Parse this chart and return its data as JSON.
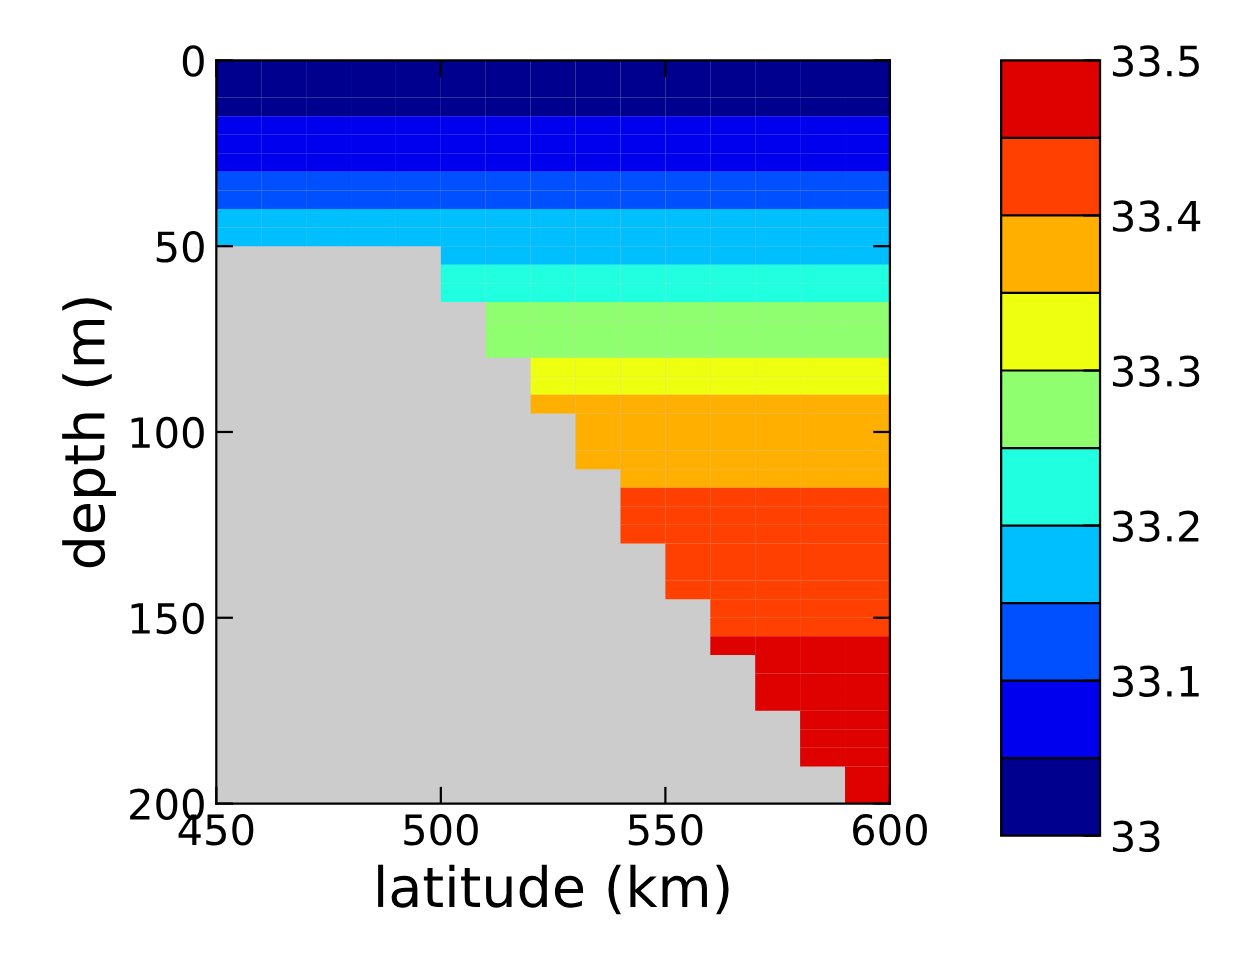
{
  "chart_data": {
    "type": "heatmap",
    "xlabel": "latitude (km)",
    "ylabel": "depth (m)",
    "xlim": [
      450,
      600
    ],
    "xticks": [
      450,
      500,
      550,
      600
    ],
    "ylim": [
      200,
      0
    ],
    "yticks": [
      0,
      50,
      100,
      150,
      200
    ],
    "clim": [
      33,
      33.5
    ],
    "cticks": [
      33,
      33.1,
      33.2,
      33.3,
      33.4,
      33.5
    ],
    "colors": [
      "#00008f",
      "#0000ef",
      "#0050ff",
      "#00bfff",
      "#20ffdf",
      "#8fff70",
      "#efff10",
      "#ffaf00",
      "#ff4000",
      "#df0000"
    ],
    "grid": false,
    "cells": [
      [
        33.025,
        33.025,
        33.025,
        33.025,
        33.025,
        33.025,
        33.025,
        33.025,
        33.025,
        33.025,
        33.025,
        33.025,
        33.025,
        33.025,
        33.025
      ],
      [
        33.025,
        33.025,
        33.025,
        33.025,
        33.025,
        33.025,
        33.025,
        33.025,
        33.025,
        33.025,
        33.025,
        33.025,
        33.025,
        33.025,
        33.025
      ],
      [
        33.025,
        33.025,
        33.025,
        33.025,
        33.025,
        33.025,
        33.025,
        33.025,
        33.025,
        33.025,
        33.025,
        33.025,
        33.025,
        33.025,
        33.025
      ],
      [
        33.075,
        33.075,
        33.075,
        33.075,
        33.075,
        33.075,
        33.075,
        33.075,
        33.075,
        33.075,
        33.075,
        33.075,
        33.075,
        33.075,
        33.075
      ],
      [
        33.075,
        33.075,
        33.075,
        33.075,
        33.075,
        33.075,
        33.075,
        33.075,
        33.075,
        33.075,
        33.075,
        33.075,
        33.075,
        33.075,
        33.075
      ],
      [
        33.075,
        33.075,
        33.075,
        33.075,
        33.075,
        33.075,
        33.075,
        33.075,
        33.075,
        33.075,
        33.075,
        33.075,
        33.075,
        33.075,
        33.075
      ],
      [
        33.125,
        33.125,
        33.125,
        33.125,
        33.125,
        33.125,
        33.125,
        33.125,
        33.125,
        33.125,
        33.125,
        33.125,
        33.125,
        33.125,
        33.125
      ],
      [
        33.125,
        33.125,
        33.125,
        33.125,
        33.125,
        33.125,
        33.125,
        33.125,
        33.125,
        33.125,
        33.125,
        33.125,
        33.125,
        33.125,
        33.125
      ],
      [
        33.175,
        33.175,
        33.175,
        33.175,
        33.175,
        33.175,
        33.175,
        33.175,
        33.175,
        33.175,
        33.175,
        33.175,
        33.175,
        33.175,
        33.175
      ],
      [
        33.175,
        33.175,
        33.175,
        33.175,
        33.175,
        33.175,
        33.175,
        33.175,
        33.175,
        33.175,
        33.175,
        33.175,
        33.175,
        33.175,
        33.175
      ],
      [
        null,
        null,
        null,
        null,
        null,
        33.175,
        33.175,
        33.175,
        33.175,
        33.175,
        33.175,
        33.175,
        33.175,
        33.175,
        33.175
      ],
      [
        null,
        null,
        null,
        null,
        null,
        33.225,
        33.225,
        33.225,
        33.225,
        33.225,
        33.225,
        33.225,
        33.225,
        33.225,
        33.225
      ],
      [
        null,
        null,
        null,
        null,
        null,
        33.225,
        33.225,
        33.225,
        33.225,
        33.225,
        33.225,
        33.225,
        33.225,
        33.225,
        33.225
      ],
      [
        null,
        null,
        null,
        null,
        null,
        null,
        33.275,
        33.275,
        33.275,
        33.275,
        33.275,
        33.275,
        33.275,
        33.275,
        33.275
      ],
      [
        null,
        null,
        null,
        null,
        null,
        null,
        33.275,
        33.275,
        33.275,
        33.275,
        33.275,
        33.275,
        33.275,
        33.275,
        33.275
      ],
      [
        null,
        null,
        null,
        null,
        null,
        null,
        33.275,
        33.275,
        33.275,
        33.275,
        33.275,
        33.275,
        33.275,
        33.275,
        33.275
      ],
      [
        null,
        null,
        null,
        null,
        null,
        null,
        null,
        33.325,
        33.325,
        33.325,
        33.325,
        33.325,
        33.325,
        33.325,
        33.325
      ],
      [
        null,
        null,
        null,
        null,
        null,
        null,
        null,
        33.325,
        33.325,
        33.325,
        33.325,
        33.325,
        33.325,
        33.325,
        33.325
      ],
      [
        null,
        null,
        null,
        null,
        null,
        null,
        null,
        33.375,
        33.375,
        33.375,
        33.375,
        33.375,
        33.375,
        33.375,
        33.375
      ],
      [
        null,
        null,
        null,
        null,
        null,
        null,
        null,
        null,
        33.375,
        33.375,
        33.375,
        33.375,
        33.375,
        33.375,
        33.375
      ],
      [
        null,
        null,
        null,
        null,
        null,
        null,
        null,
        null,
        33.375,
        33.375,
        33.375,
        33.375,
        33.375,
        33.375,
        33.375
      ],
      [
        null,
        null,
        null,
        null,
        null,
        null,
        null,
        null,
        33.375,
        33.375,
        33.375,
        33.375,
        33.375,
        33.375,
        33.375
      ],
      [
        null,
        null,
        null,
        null,
        null,
        null,
        null,
        null,
        null,
        33.375,
        33.375,
        33.375,
        33.375,
        33.375,
        33.375
      ],
      [
        null,
        null,
        null,
        null,
        null,
        null,
        null,
        null,
        null,
        33.425,
        33.425,
        33.425,
        33.425,
        33.425,
        33.425
      ],
      [
        null,
        null,
        null,
        null,
        null,
        null,
        null,
        null,
        null,
        33.425,
        33.425,
        33.425,
        33.425,
        33.425,
        33.425
      ],
      [
        null,
        null,
        null,
        null,
        null,
        null,
        null,
        null,
        null,
        33.425,
        33.425,
        33.425,
        33.425,
        33.425,
        33.425
      ],
      [
        null,
        null,
        null,
        null,
        null,
        null,
        null,
        null,
        null,
        null,
        33.425,
        33.425,
        33.425,
        33.425,
        33.425
      ],
      [
        null,
        null,
        null,
        null,
        null,
        null,
        null,
        null,
        null,
        null,
        33.425,
        33.425,
        33.425,
        33.425,
        33.425
      ],
      [
        null,
        null,
        null,
        null,
        null,
        null,
        null,
        null,
        null,
        null,
        33.425,
        33.425,
        33.425,
        33.425,
        33.425
      ],
      [
        null,
        null,
        null,
        null,
        null,
        null,
        null,
        null,
        null,
        null,
        null,
        33.425,
        33.425,
        33.425,
        33.425
      ],
      [
        null,
        null,
        null,
        null,
        null,
        null,
        null,
        null,
        null,
        null,
        null,
        33.425,
        33.425,
        33.425,
        33.425
      ],
      [
        null,
        null,
        null,
        null,
        null,
        null,
        null,
        null,
        null,
        null,
        null,
        33.475,
        33.475,
        33.475,
        33.475
      ],
      [
        null,
        null,
        null,
        null,
        null,
        null,
        null,
        null,
        null,
        null,
        null,
        null,
        33.475,
        33.475,
        33.475
      ],
      [
        null,
        null,
        null,
        null,
        null,
        null,
        null,
        null,
        null,
        null,
        null,
        null,
        33.475,
        33.475,
        33.475
      ],
      [
        null,
        null,
        null,
        null,
        null,
        null,
        null,
        null,
        null,
        null,
        null,
        null,
        33.475,
        33.475,
        33.475
      ],
      [
        null,
        null,
        null,
        null,
        null,
        null,
        null,
        null,
        null,
        null,
        null,
        null,
        null,
        33.475,
        33.475
      ],
      [
        null,
        null,
        null,
        null,
        null,
        null,
        null,
        null,
        null,
        null,
        null,
        null,
        null,
        33.475,
        33.475
      ],
      [
        null,
        null,
        null,
        null,
        null,
        null,
        null,
        null,
        null,
        null,
        null,
        null,
        null,
        33.475,
        33.475
      ],
      [
        null,
        null,
        null,
        null,
        null,
        null,
        null,
        null,
        null,
        null,
        null,
        null,
        null,
        null,
        33.475
      ],
      [
        null,
        null,
        null,
        null,
        null,
        null,
        null,
        null,
        null,
        null,
        null,
        null,
        null,
        null,
        33.475
      ]
    ]
  }
}
